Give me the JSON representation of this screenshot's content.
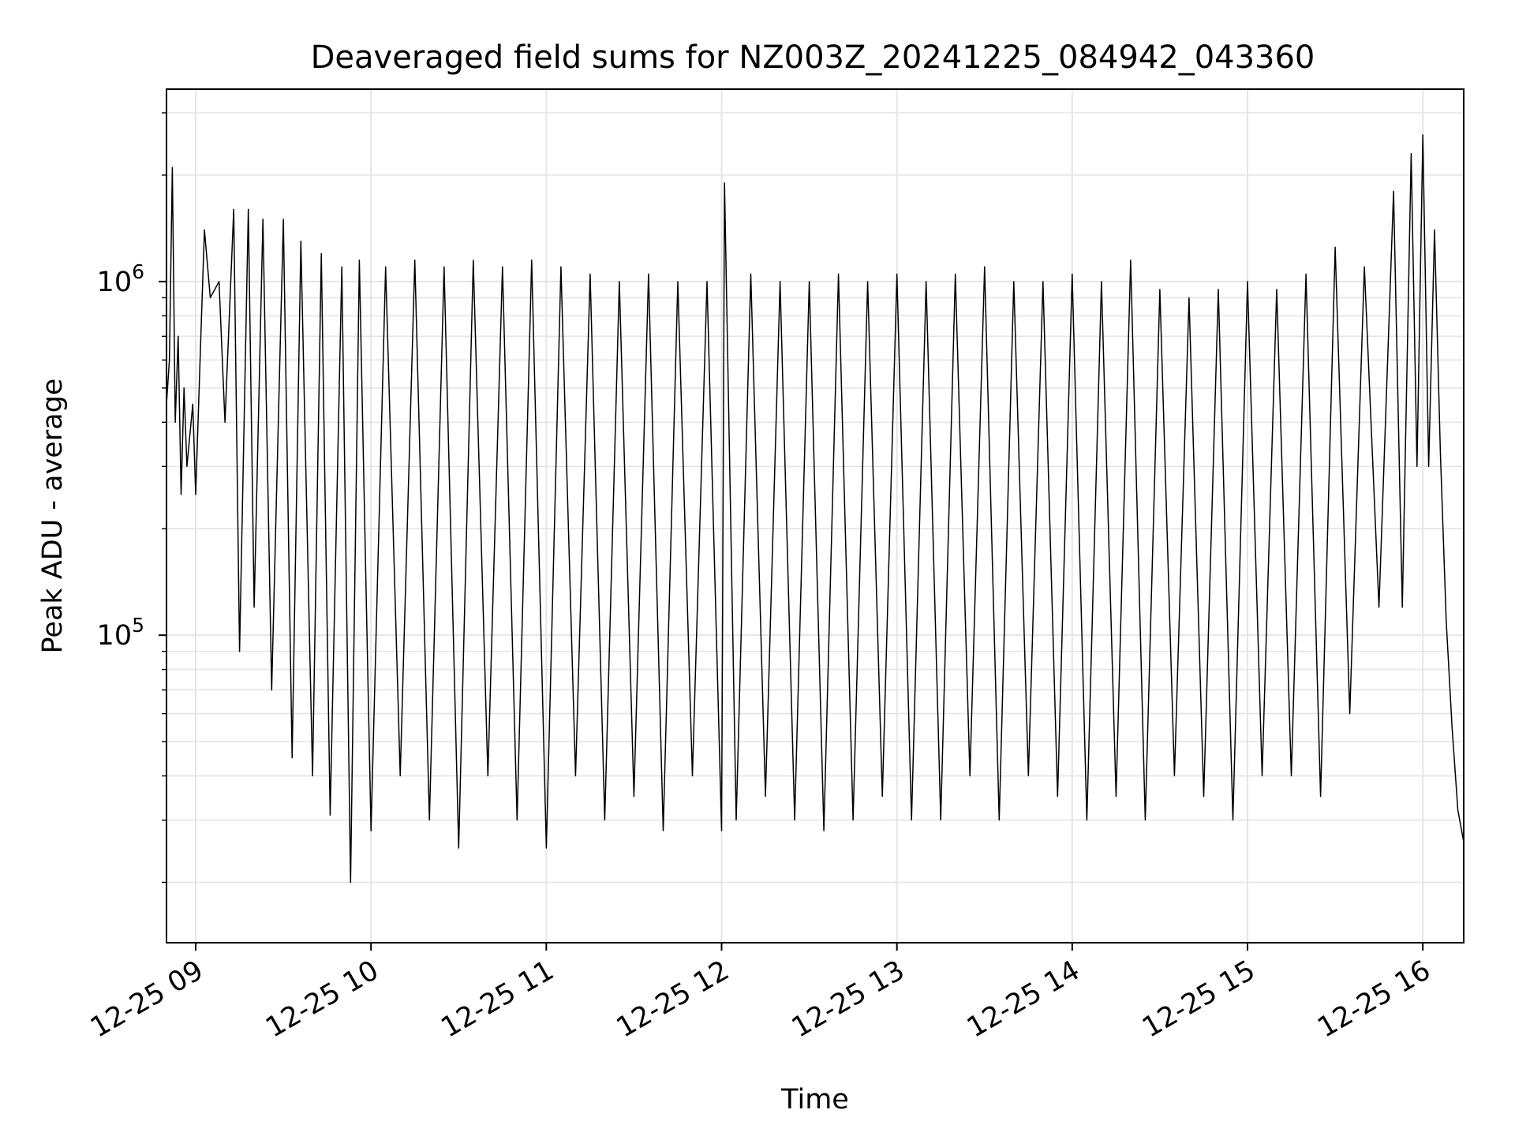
{
  "chart_data": {
    "type": "line",
    "title": "Deaveraged field sums for NZ003Z_20241225_084942_043360",
    "xlabel": "Time",
    "ylabel": "Peak ADU - average",
    "x_ticks": [
      "12-25 09",
      "12-25 10",
      "12-25 11",
      "12-25 12",
      "12-25 13",
      "12-25 14",
      "12-25 15",
      "12-25 16"
    ],
    "xlim": [
      "2024-12-25 08:50",
      "2024-12-25 16:14"
    ],
    "ylim": [
      13500,
      3500000
    ],
    "y_scale": "log",
    "y_ticks": [
      {
        "value": 100000,
        "base": "10",
        "exp": "5"
      },
      {
        "value": 1000000,
        "base": "10",
        "exp": "6"
      }
    ],
    "grid": true,
    "line_color": "#000000",
    "grid_color": "#e5e5e5",
    "series": [
      {
        "x": [
          "08:50",
          "08:51",
          "08:52",
          "08:53",
          "08:54",
          "08:55",
          "08:56",
          "08:57",
          "08:59",
          "09:00",
          "09:02",
          "09:03",
          "09:05",
          "09:08",
          "09:10",
          "09:13",
          "09:15",
          "09:18",
          "09:20",
          "09:23",
          "09:26",
          "09:30",
          "09:33",
          "09:36",
          "09:40",
          "09:43",
          "09:46",
          "09:50",
          "09:53",
          "09:56",
          "10:00",
          "10:05",
          "10:10",
          "10:15",
          "10:20",
          "10:25",
          "10:30",
          "10:35",
          "10:40",
          "10:45",
          "10:50",
          "10:55",
          "11:00",
          "11:05",
          "11:10",
          "11:15",
          "11:20",
          "11:25",
          "11:30",
          "11:35",
          "11:40",
          "11:45",
          "11:50",
          "11:55",
          "12:00",
          "12:01",
          "12:05",
          "12:10",
          "12:15",
          "12:20",
          "12:25",
          "12:30",
          "12:35",
          "12:40",
          "12:45",
          "12:50",
          "12:55",
          "13:00",
          "13:05",
          "13:10",
          "13:15",
          "13:20",
          "13:25",
          "13:30",
          "13:35",
          "13:40",
          "13:45",
          "13:50",
          "13:55",
          "14:00",
          "14:05",
          "14:10",
          "14:15",
          "14:20",
          "14:25",
          "14:30",
          "14:35",
          "14:40",
          "14:45",
          "14:50",
          "14:55",
          "15:00",
          "15:05",
          "15:10",
          "15:15",
          "15:20",
          "15:25",
          "15:30",
          "15:35",
          "15:40",
          "15:45",
          "15:50",
          "15:53",
          "15:56",
          "15:58",
          "16:00",
          "16:02",
          "16:04",
          "16:06",
          "16:08",
          "16:10",
          "16:12",
          "16:14"
        ],
        "y": [
          450000,
          600000,
          2100000,
          400000,
          700000,
          250000,
          500000,
          300000,
          450000,
          250000,
          800000,
          1400000,
          900000,
          1000000,
          400000,
          1600000,
          90000,
          1600000,
          120000,
          1500000,
          70000,
          1500000,
          45000,
          1300000,
          40000,
          1200000,
          31000,
          1100000,
          20000,
          1150000,
          28000,
          1100000,
          40000,
          1150000,
          30000,
          1100000,
          25000,
          1150000,
          40000,
          1100000,
          30000,
          1150000,
          25000,
          1100000,
          40000,
          1050000,
          30000,
          1000000,
          35000,
          1050000,
          28000,
          1000000,
          40000,
          1000000,
          28000,
          1900000,
          30000,
          1050000,
          35000,
          1000000,
          30000,
          1000000,
          28000,
          1050000,
          30000,
          1000000,
          35000,
          1050000,
          30000,
          1000000,
          30000,
          1050000,
          40000,
          1100000,
          30000,
          1000000,
          40000,
          1000000,
          35000,
          1050000,
          30000,
          1000000,
          35000,
          1150000,
          30000,
          950000,
          40000,
          900000,
          35000,
          950000,
          30000,
          1000000,
          40000,
          950000,
          40000,
          1050000,
          35000,
          1250000,
          60000,
          1100000,
          120000,
          1800000,
          120000,
          2300000,
          300000,
          2600000,
          300000,
          1400000,
          330000,
          110000,
          55000,
          32000,
          26000
        ]
      }
    ]
  }
}
